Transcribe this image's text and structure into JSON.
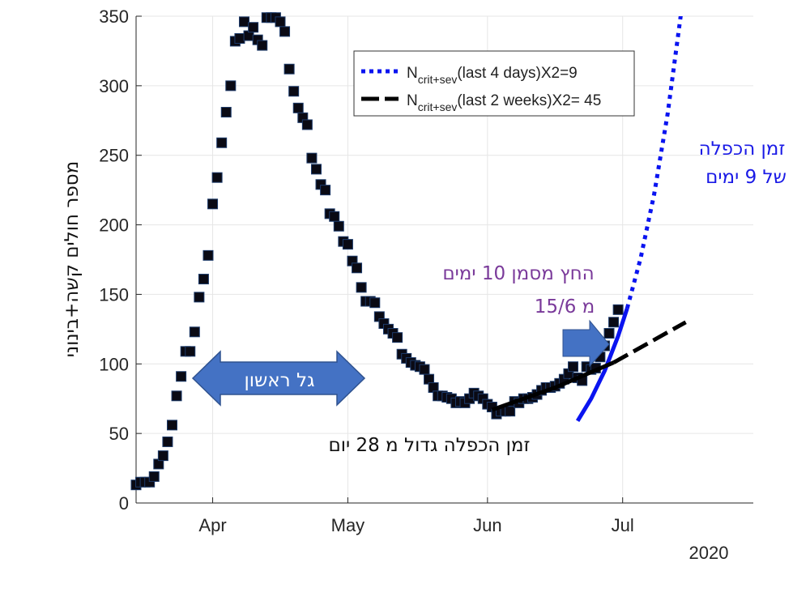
{
  "chart_data": {
    "type": "scatter",
    "xlabel": "",
    "ylabel": "מספר חולים קשה+בינוני",
    "xlim": [
      "2020-03-15",
      "2020-07-30"
    ],
    "ylim": [
      0,
      350
    ],
    "grid": true,
    "year_label": "2020",
    "x_ticks": [
      {
        "date": "2020-04-01",
        "label": "Apr"
      },
      {
        "date": "2020-05-01",
        "label": "May"
      },
      {
        "date": "2020-06-01",
        "label": "Jun"
      },
      {
        "date": "2020-07-01",
        "label": "Jul"
      }
    ],
    "y_ticks": [
      0,
      50,
      100,
      150,
      200,
      250,
      300,
      350
    ],
    "marker_color": "#0a0a14",
    "points": [
      [
        "2020-03-15",
        13
      ],
      [
        "2020-03-16",
        15
      ],
      [
        "2020-03-17",
        15
      ],
      [
        "2020-03-18",
        15
      ],
      [
        "2020-03-19",
        19
      ],
      [
        "2020-03-20",
        28
      ],
      [
        "2020-03-21",
        34
      ],
      [
        "2020-03-22",
        44
      ],
      [
        "2020-03-23",
        56
      ],
      [
        "2020-03-24",
        77
      ],
      [
        "2020-03-25",
        91
      ],
      [
        "2020-03-26",
        109
      ],
      [
        "2020-03-27",
        109
      ],
      [
        "2020-03-28",
        123
      ],
      [
        "2020-03-29",
        148
      ],
      [
        "2020-03-30",
        161
      ],
      [
        "2020-03-31",
        178
      ],
      [
        "2020-04-01",
        215
      ],
      [
        "2020-04-02",
        234
      ],
      [
        "2020-04-03",
        259
      ],
      [
        "2020-04-04",
        281
      ],
      [
        "2020-04-05",
        300
      ],
      [
        "2020-04-06",
        332
      ],
      [
        "2020-04-07",
        334
      ],
      [
        "2020-04-08",
        346
      ],
      [
        "2020-04-09",
        336
      ],
      [
        "2020-04-10",
        342
      ],
      [
        "2020-04-11",
        333
      ],
      [
        "2020-04-12",
        329
      ],
      [
        "2020-04-13",
        349
      ],
      [
        "2020-04-14",
        349
      ],
      [
        "2020-04-15",
        349
      ],
      [
        "2020-04-16",
        346
      ],
      [
        "2020-04-17",
        339
      ],
      [
        "2020-04-18",
        312
      ],
      [
        "2020-04-19",
        296
      ],
      [
        "2020-04-20",
        284
      ],
      [
        "2020-04-21",
        277
      ],
      [
        "2020-04-22",
        272
      ],
      [
        "2020-04-23",
        248
      ],
      [
        "2020-04-24",
        240
      ],
      [
        "2020-04-25",
        229
      ],
      [
        "2020-04-26",
        225
      ],
      [
        "2020-04-27",
        208
      ],
      [
        "2020-04-28",
        206
      ],
      [
        "2020-04-29",
        199
      ],
      [
        "2020-04-30",
        188
      ],
      [
        "2020-05-01",
        186
      ],
      [
        "2020-05-02",
        174
      ],
      [
        "2020-05-03",
        169
      ],
      [
        "2020-05-04",
        155
      ],
      [
        "2020-05-05",
        145
      ],
      [
        "2020-05-06",
        145
      ],
      [
        "2020-05-07",
        144
      ],
      [
        "2020-05-08",
        134
      ],
      [
        "2020-05-09",
        129
      ],
      [
        "2020-05-10",
        125
      ],
      [
        "2020-05-11",
        122
      ],
      [
        "2020-05-12",
        119
      ],
      [
        "2020-05-13",
        107
      ],
      [
        "2020-05-14",
        104
      ],
      [
        "2020-05-15",
        101
      ],
      [
        "2020-05-16",
        99
      ],
      [
        "2020-05-17",
        98
      ],
      [
        "2020-05-18",
        96
      ],
      [
        "2020-05-19",
        89
      ],
      [
        "2020-05-20",
        83
      ],
      [
        "2020-05-21",
        77
      ],
      [
        "2020-05-22",
        77
      ],
      [
        "2020-05-23",
        76
      ],
      [
        "2020-05-24",
        75
      ],
      [
        "2020-05-25",
        72
      ],
      [
        "2020-05-26",
        73
      ],
      [
        "2020-05-27",
        72
      ],
      [
        "2020-05-28",
        75
      ],
      [
        "2020-05-29",
        79
      ],
      [
        "2020-05-30",
        77
      ],
      [
        "2020-05-31",
        75
      ],
      [
        "2020-06-01",
        71
      ],
      [
        "2020-06-02",
        69
      ],
      [
        "2020-06-03",
        64
      ],
      [
        "2020-06-04",
        66
      ],
      [
        "2020-06-05",
        66
      ],
      [
        "2020-06-06",
        66
      ],
      [
        "2020-06-07",
        73
      ],
      [
        "2020-06-08",
        72
      ],
      [
        "2020-06-09",
        75
      ],
      [
        "2020-06-10",
        75
      ],
      [
        "2020-06-11",
        76
      ],
      [
        "2020-06-12",
        78
      ],
      [
        "2020-06-13",
        81
      ],
      [
        "2020-06-14",
        83
      ],
      [
        "2020-06-15",
        83
      ],
      [
        "2020-06-16",
        84
      ],
      [
        "2020-06-17",
        86
      ],
      [
        "2020-06-18",
        89
      ],
      [
        "2020-06-19",
        93
      ],
      [
        "2020-06-20",
        98
      ],
      [
        "2020-06-21",
        90
      ],
      [
        "2020-06-22",
        88
      ],
      [
        "2020-06-23",
        98
      ],
      [
        "2020-06-24",
        96
      ],
      [
        "2020-06-25",
        97
      ],
      [
        "2020-06-26",
        105
      ],
      [
        "2020-06-27",
        113
      ],
      [
        "2020-06-28",
        122
      ],
      [
        "2020-06-29",
        130
      ],
      [
        "2020-06-30",
        139
      ]
    ],
    "fits": [
      {
        "legend_main": "N",
        "legend_sub": "crit+sev",
        "legend_rest": "(last 4 days)X2=9",
        "color": "#0a14f0",
        "style": "dotted",
        "solid_points": [
          [
            "2020-06-21",
            59
          ],
          [
            "2020-06-24",
            75
          ],
          [
            "2020-06-27",
            95
          ],
          [
            "2020-06-30",
            120
          ],
          [
            "2020-07-02",
            140
          ]
        ],
        "dotted_points": [
          [
            "2020-07-02",
            140
          ],
          [
            "2020-07-05",
            176
          ],
          [
            "2020-07-08",
            222
          ],
          [
            "2020-07-11",
            280
          ],
          [
            "2020-07-14",
            353
          ]
        ]
      },
      {
        "legend_main": "N",
        "legend_sub": "crit+sev",
        "legend_rest": "(last 2 weeks)X2= 45",
        "color": "#000000",
        "style": "dashed",
        "solid_points": [
          [
            "2020-06-02",
            67
          ],
          [
            "2020-06-16",
            83
          ],
          [
            "2020-06-29",
            101
          ]
        ],
        "dotted_points": [
          [
            "2020-06-29",
            101
          ],
          [
            "2020-07-15",
            130
          ]
        ]
      }
    ],
    "annotations": {
      "first_wave": "גל ראשון",
      "doubling_28": "זמן הכפלה גדול מ 28 יום",
      "arrow_note_line1": "החץ מסמן 10 ימים",
      "arrow_note_line2": "מ 15/6",
      "doubling_9_line1": "זמן הכפלה",
      "doubling_9_line2": "של 9 ימים"
    },
    "colors": {
      "annotation_blue": "#1a1ae6",
      "annotation_purple": "#7a3a9a",
      "arrow_fill": "#4472c4",
      "arrow_edge": "#2f528f"
    }
  }
}
